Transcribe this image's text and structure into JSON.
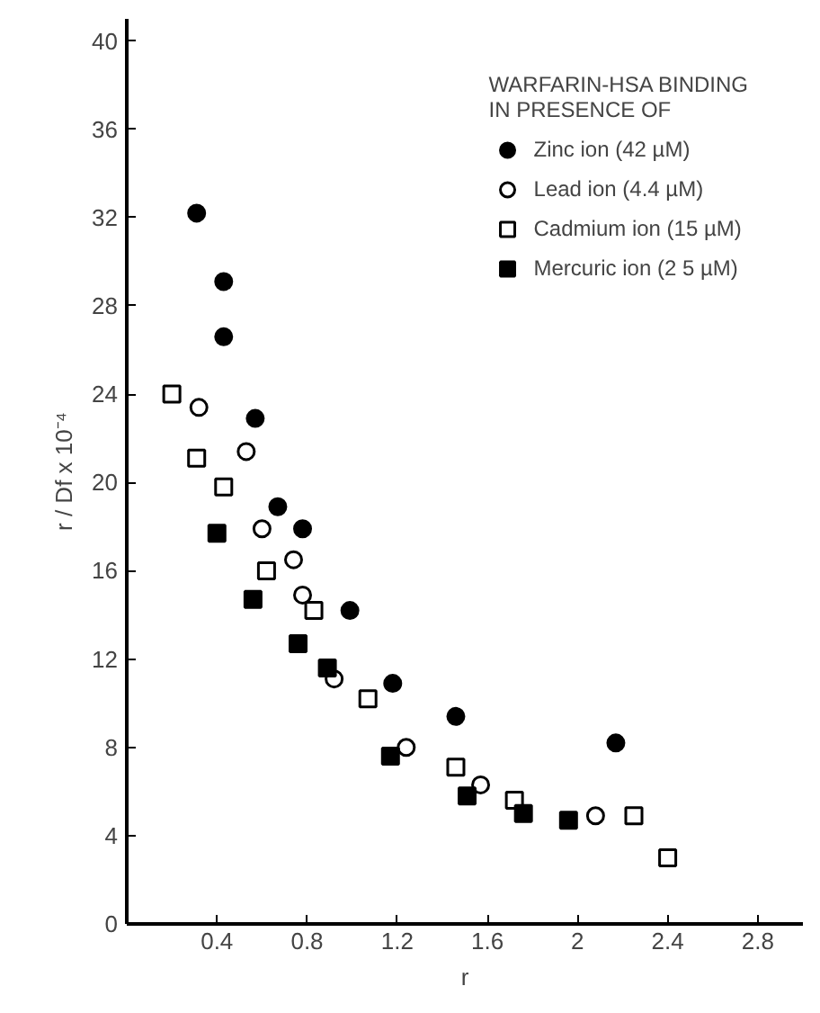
{
  "chart_data": {
    "type": "scatter",
    "xlabel": "r",
    "ylabel": "r / Df x 10⁻⁴",
    "legend_title": "WARFARIN-HSA BINDING\nIN PRESENCE OF",
    "xlim": [
      0,
      3.0
    ],
    "ylim": [
      0,
      41
    ],
    "xticks": [
      0.4,
      0.8,
      1.2,
      1.6,
      2.0,
      2.4,
      2.8
    ],
    "yticks": [
      0,
      4,
      8,
      12,
      16,
      20,
      24,
      28,
      32,
      36,
      40
    ],
    "grid": false,
    "legend": "top right",
    "series": [
      {
        "name": "Zinc ion (42 µM)",
        "color": "#000000",
        "marker": "circle",
        "x": [
          0.31,
          0.43,
          0.43,
          0.57,
          0.67,
          0.78,
          0.99,
          1.18,
          1.46,
          2.17
        ],
        "values": [
          32.2,
          29.1,
          26.6,
          22.9,
          18.9,
          17.9,
          14.2,
          10.9,
          9.4,
          8.2
        ]
      },
      {
        "name": "Lead ion (4.4 µM)",
        "color": "#ffffff",
        "marker": "circle",
        "x": [
          0.32,
          0.53,
          0.6,
          0.74,
          0.78,
          0.92,
          1.24,
          1.57,
          2.08
        ],
        "values": [
          23.4,
          21.4,
          17.9,
          16.5,
          14.9,
          11.1,
          8.0,
          6.3,
          4.9
        ]
      },
      {
        "name": "Cadmium ion (15 µM)",
        "color": "#ffffff",
        "marker": "square",
        "x": [
          0.2,
          0.31,
          0.43,
          0.62,
          0.83,
          1.07,
          1.46,
          1.72,
          2.25,
          2.4
        ],
        "values": [
          24.0,
          21.1,
          19.8,
          16.0,
          14.2,
          10.2,
          7.1,
          5.6,
          4.9,
          3.0
        ]
      },
      {
        "name": "Mercuric ion (2 5 µM)",
        "color": "#000000",
        "marker": "square",
        "x": [
          0.4,
          0.56,
          0.76,
          0.89,
          1.17,
          1.51,
          1.76,
          1.96
        ],
        "values": [
          17.7,
          14.7,
          12.7,
          11.6,
          7.6,
          5.8,
          5.0,
          4.7
        ]
      }
    ]
  }
}
